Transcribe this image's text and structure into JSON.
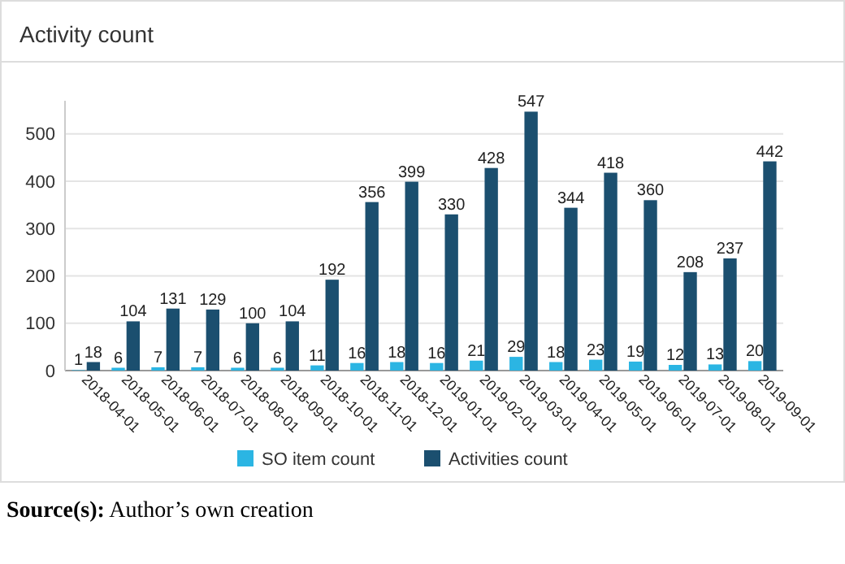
{
  "chart_data": {
    "type": "bar",
    "title": "Activity count",
    "categories": [
      "2018-04-01",
      "2018-05-01",
      "2018-06-01",
      "2018-07-01",
      "2018-08-01",
      "2018-09-01",
      "2018-10-01",
      "2018-11-01",
      "2018-12-01",
      "2019-01-01",
      "2019-02-01",
      "2019-03-01",
      "2019-04-01",
      "2019-05-01",
      "2019-06-01",
      "2019-07-01",
      "2019-08-01",
      "2019-09-01"
    ],
    "series": [
      {
        "name": "SO item count",
        "color": "#2bb5e3",
        "values": [
          1,
          6,
          7,
          7,
          6,
          6,
          11,
          16,
          18,
          16,
          21,
          29,
          18,
          23,
          19,
          12,
          13,
          20
        ]
      },
      {
        "name": "Activities count",
        "color": "#1b4f6f",
        "values": [
          18,
          104,
          131,
          129,
          100,
          104,
          192,
          356,
          399,
          330,
          428,
          547,
          344,
          418,
          360,
          208,
          237,
          442
        ]
      }
    ],
    "ylim": [
      0,
      570
    ],
    "yticks": [
      0,
      100,
      200,
      300,
      400,
      500
    ],
    "grid": "y",
    "data_labels": true,
    "legend": "bottom",
    "annotations": [
      "Source(s): Author’s own creation"
    ]
  }
}
